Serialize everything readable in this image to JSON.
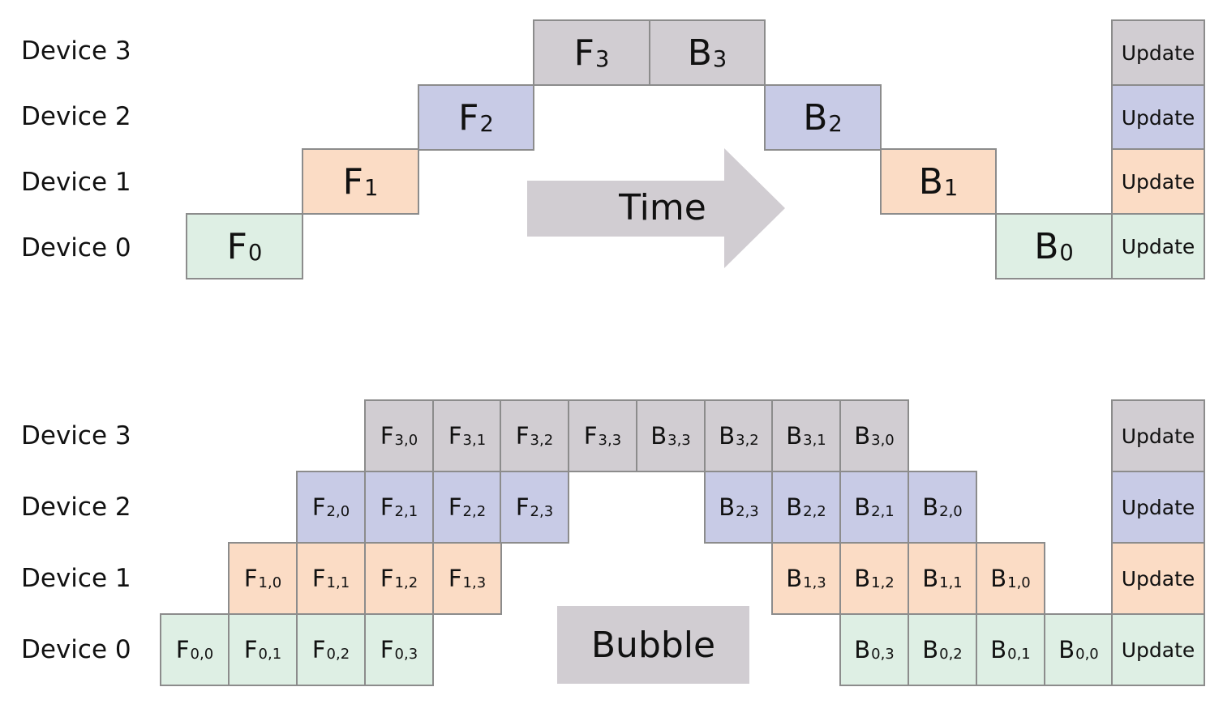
{
  "top_diagram": {
    "device_labels": [
      "Device 3",
      "Device 2",
      "Device 1",
      "Device 0"
    ],
    "time_label": "Time",
    "colors": {
      "device0": "#deefe4",
      "device1": "#fbdcc5",
      "device2": "#c8cbe6",
      "device3": "#d1cdd2"
    },
    "cells": [
      {
        "id": "F0",
        "base": "F",
        "sub": "0",
        "device": 0
      },
      {
        "id": "F1",
        "base": "F",
        "sub": "1",
        "device": 1
      },
      {
        "id": "F2",
        "base": "F",
        "sub": "2",
        "device": 2
      },
      {
        "id": "F3",
        "base": "F",
        "sub": "3",
        "device": 3
      },
      {
        "id": "B3",
        "base": "B",
        "sub": "3",
        "device": 3
      },
      {
        "id": "B2",
        "base": "B",
        "sub": "2",
        "device": 2
      },
      {
        "id": "B1",
        "base": "B",
        "sub": "1",
        "device": 1
      },
      {
        "id": "B0",
        "base": "B",
        "sub": "0",
        "device": 0
      },
      {
        "id": "U3",
        "base": "Update",
        "sub": "",
        "device": 3
      },
      {
        "id": "U2",
        "base": "Update",
        "sub": "",
        "device": 2
      },
      {
        "id": "U1",
        "base": "Update",
        "sub": "",
        "device": 1
      },
      {
        "id": "U0",
        "base": "Update",
        "sub": "",
        "device": 0
      }
    ]
  },
  "bottom_diagram": {
    "device_labels": [
      "Device 3",
      "Device 2",
      "Device 1",
      "Device 0"
    ],
    "bubble_label": "Bubble",
    "cells": [
      {
        "id": "F00",
        "base": "F",
        "sub": "0,0",
        "device": 0
      },
      {
        "id": "F01",
        "base": "F",
        "sub": "0,1",
        "device": 0
      },
      {
        "id": "F02",
        "base": "F",
        "sub": "0,2",
        "device": 0
      },
      {
        "id": "F03",
        "base": "F",
        "sub": "0,3",
        "device": 0
      },
      {
        "id": "F10",
        "base": "F",
        "sub": "1,0",
        "device": 1
      },
      {
        "id": "F11",
        "base": "F",
        "sub": "1,1",
        "device": 1
      },
      {
        "id": "F12",
        "base": "F",
        "sub": "1,2",
        "device": 1
      },
      {
        "id": "F13",
        "base": "F",
        "sub": "1,3",
        "device": 1
      },
      {
        "id": "F20",
        "base": "F",
        "sub": "2,0",
        "device": 2
      },
      {
        "id": "F21",
        "base": "F",
        "sub": "2,1",
        "device": 2
      },
      {
        "id": "F22",
        "base": "F",
        "sub": "2,2",
        "device": 2
      },
      {
        "id": "F23",
        "base": "F",
        "sub": "2,3",
        "device": 2
      },
      {
        "id": "F30",
        "base": "F",
        "sub": "3,0",
        "device": 3
      },
      {
        "id": "F31",
        "base": "F",
        "sub": "3,1",
        "device": 3
      },
      {
        "id": "F32",
        "base": "F",
        "sub": "3,2",
        "device": 3
      },
      {
        "id": "F33",
        "base": "F",
        "sub": "3,3",
        "device": 3
      },
      {
        "id": "B33",
        "base": "B",
        "sub": "3,3",
        "device": 3
      },
      {
        "id": "B32",
        "base": "B",
        "sub": "3,2",
        "device": 3
      },
      {
        "id": "B31",
        "base": "B",
        "sub": "3,1",
        "device": 3
      },
      {
        "id": "B30",
        "base": "B",
        "sub": "3,0",
        "device": 3
      },
      {
        "id": "B23",
        "base": "B",
        "sub": "2,3",
        "device": 2
      },
      {
        "id": "B22",
        "base": "B",
        "sub": "2,2",
        "device": 2
      },
      {
        "id": "B21",
        "base": "B",
        "sub": "2,1",
        "device": 2
      },
      {
        "id": "B20",
        "base": "B",
        "sub": "2,0",
        "device": 2
      },
      {
        "id": "B13",
        "base": "B",
        "sub": "1,3",
        "device": 1
      },
      {
        "id": "B12",
        "base": "B",
        "sub": "1,2",
        "device": 1
      },
      {
        "id": "B11",
        "base": "B",
        "sub": "1,1",
        "device": 1
      },
      {
        "id": "B10",
        "base": "B",
        "sub": "1,0",
        "device": 1
      },
      {
        "id": "B03",
        "base": "B",
        "sub": "0,3",
        "device": 0
      },
      {
        "id": "B02",
        "base": "B",
        "sub": "0,2",
        "device": 0
      },
      {
        "id": "B01",
        "base": "B",
        "sub": "0,1",
        "device": 0
      },
      {
        "id": "B00",
        "base": "B",
        "sub": "0,0",
        "device": 0
      },
      {
        "id": "U3",
        "base": "Update",
        "sub": "",
        "device": 3
      },
      {
        "id": "U2",
        "base": "Update",
        "sub": "",
        "device": 2
      },
      {
        "id": "U1",
        "base": "Update",
        "sub": "",
        "device": 1
      },
      {
        "id": "U0",
        "base": "Update",
        "sub": "",
        "device": 0
      }
    ]
  }
}
